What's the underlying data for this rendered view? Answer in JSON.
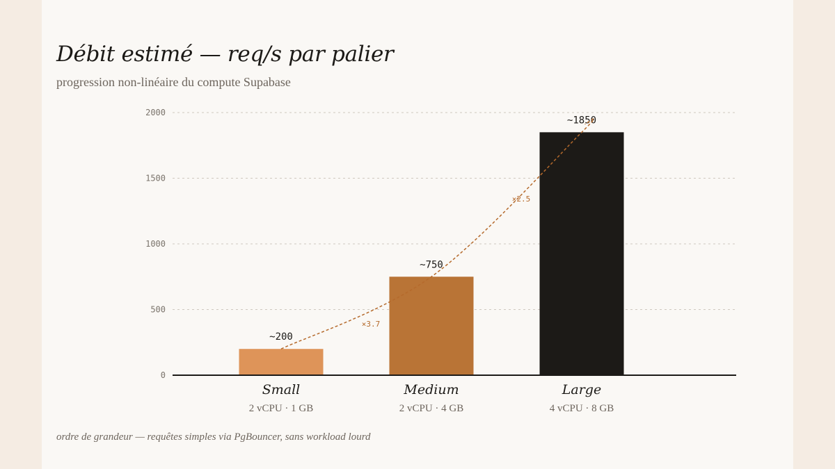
{
  "header": {
    "title": "Débit estimé — req/s par palier",
    "subtitle": "progression non-linéaire du compute Supabase"
  },
  "footnote": "ordre de grandeur — requêtes simples via PgBouncer, sans workload lourd",
  "chart_data": {
    "type": "bar",
    "title": "Débit estimé — req/s par palier",
    "subtitle": "progression non-linéaire du compute Supabase",
    "categories": [
      "Small",
      "Medium",
      "Large"
    ],
    "specs": [
      "2 vCPU · 1 GB",
      "2 vCPU · 4 GB",
      "4 vCPU · 8 GB"
    ],
    "values": [
      200,
      750,
      1850
    ],
    "value_labels": [
      "~200",
      "~750",
      "~1850"
    ],
    "colors": [
      "#de9459",
      "#b97436",
      "#1c1a17"
    ],
    "ylim": [
      0,
      2000
    ],
    "yticks": [
      0,
      500,
      1000,
      1500,
      2000
    ],
    "grid": true,
    "trend": {
      "color": "#b56a2c",
      "annotations": [
        "×3.7",
        "×2.5"
      ]
    }
  }
}
